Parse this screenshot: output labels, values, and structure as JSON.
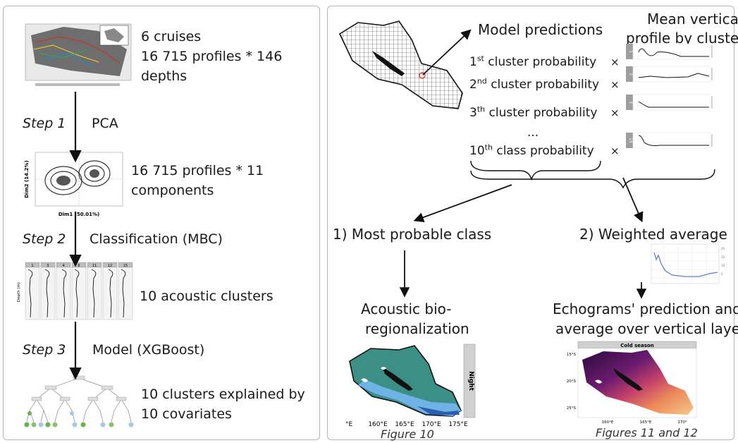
{
  "left": {
    "block1": {
      "line1": "6 cruises",
      "line2": "16 715 profiles * 146",
      "line3": "depths"
    },
    "step1": {
      "label": "Step 1",
      "method": "PCA"
    },
    "block2": {
      "line1": "16 715 profiles * 11",
      "line2": "components"
    },
    "step2": {
      "label": "Step 2",
      "method": "Classification (MBC)"
    },
    "block3": {
      "line1": "10 acoustic clusters"
    },
    "step3": {
      "label": "Step 3",
      "method": "Model (XGBoost)"
    },
    "block4": {
      "line1": "10 clusters explained by",
      "line2": "10 covariates"
    },
    "pca_axes": {
      "x": "Dim1 (50.01%)",
      "y": "Dim2 (14.2%)"
    },
    "cluster_ids": [
      "1",
      "3",
      "4",
      "6",
      "11",
      "12",
      "15"
    ],
    "depth_label": "Depth (m)"
  },
  "right": {
    "model_predictions": "Model predictions",
    "mean_profile": {
      "line1": "Mean vertical",
      "line2": "profile by cluster"
    },
    "rows": [
      {
        "ord": "1",
        "sup": "st",
        "text": " cluster probability",
        "badge": "1"
      },
      {
        "ord": "2",
        "sup": "nd",
        "text": " cluster probability",
        "badge": "2"
      },
      {
        "ord": "3",
        "sup": "th",
        "text": " cluster probability",
        "badge": "3"
      },
      {
        "ord": "10",
        "sup": "th",
        "text": " class probability",
        "badge": "15"
      }
    ],
    "ellipsis": "...",
    "times_symbol": "×",
    "option1": "1)  Most probable class",
    "option2": "2) Weighted average",
    "result1": {
      "line1": "Acoustic bio-",
      "line2": "regionalization"
    },
    "result2": {
      "line1": "Echograms' prediction and",
      "line2": "average over vertical layers"
    },
    "map1": {
      "facet": "Night",
      "ticks": [
        "°E",
        "160°E",
        "165°E",
        "170°E",
        "175°E"
      ]
    },
    "map2": {
      "title": "Cold season",
      "ticks": [
        "160°E",
        "165°E",
        "170°"
      ],
      "lat": [
        "15°S",
        "20°S",
        "25°S"
      ]
    },
    "caption1": "Figure 10",
    "caption2": "Figures 11 and 12"
  }
}
